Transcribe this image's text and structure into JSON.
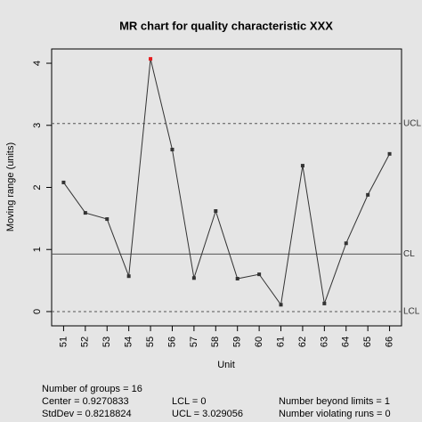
{
  "chart_data": {
    "type": "line",
    "title": "MR chart for quality characteristic XXX",
    "x_label": "Unit",
    "y_label": "Moving range (units)",
    "x": [
      51,
      52,
      53,
      54,
      55,
      56,
      57,
      58,
      59,
      60,
      61,
      62,
      63,
      64,
      65,
      66
    ],
    "series": [
      {
        "name": "Moving range",
        "color": "#333333",
        "values": [
          2.08,
          1.59,
          1.49,
          0.57,
          4.07,
          2.61,
          0.54,
          1.62,
          0.53,
          0.6,
          0.11,
          2.35,
          0.13,
          1.1,
          1.88,
          2.54
        ]
      }
    ],
    "highlight_color": "#e41a1c",
    "xlim": [
      50.45,
      66.55
    ],
    "ylim": [
      -0.23,
      4.23
    ],
    "yticks": [
      0,
      1,
      2,
      3,
      4
    ],
    "limit_lines": [
      {
        "label": "UCL",
        "value": 3.029056,
        "style": "dashed"
      },
      {
        "label": "CL",
        "value": 0.9270833,
        "style": "solid"
      },
      {
        "label": "LCL",
        "value": 0,
        "style": "dashed"
      }
    ],
    "stats": [
      {
        "label": "Number of groups =",
        "value": 16
      },
      {
        "label": "Center =",
        "value": 0.9270833
      },
      {
        "label": "StdDev =",
        "value": 0.8218824
      },
      {
        "label": "LCL =",
        "value": 0
      },
      {
        "label": "UCL =",
        "value": 3.029056
      },
      {
        "label": "Number beyond limits =",
        "value": 1
      },
      {
        "label": "Number violating runs =",
        "value": 0
      }
    ]
  }
}
